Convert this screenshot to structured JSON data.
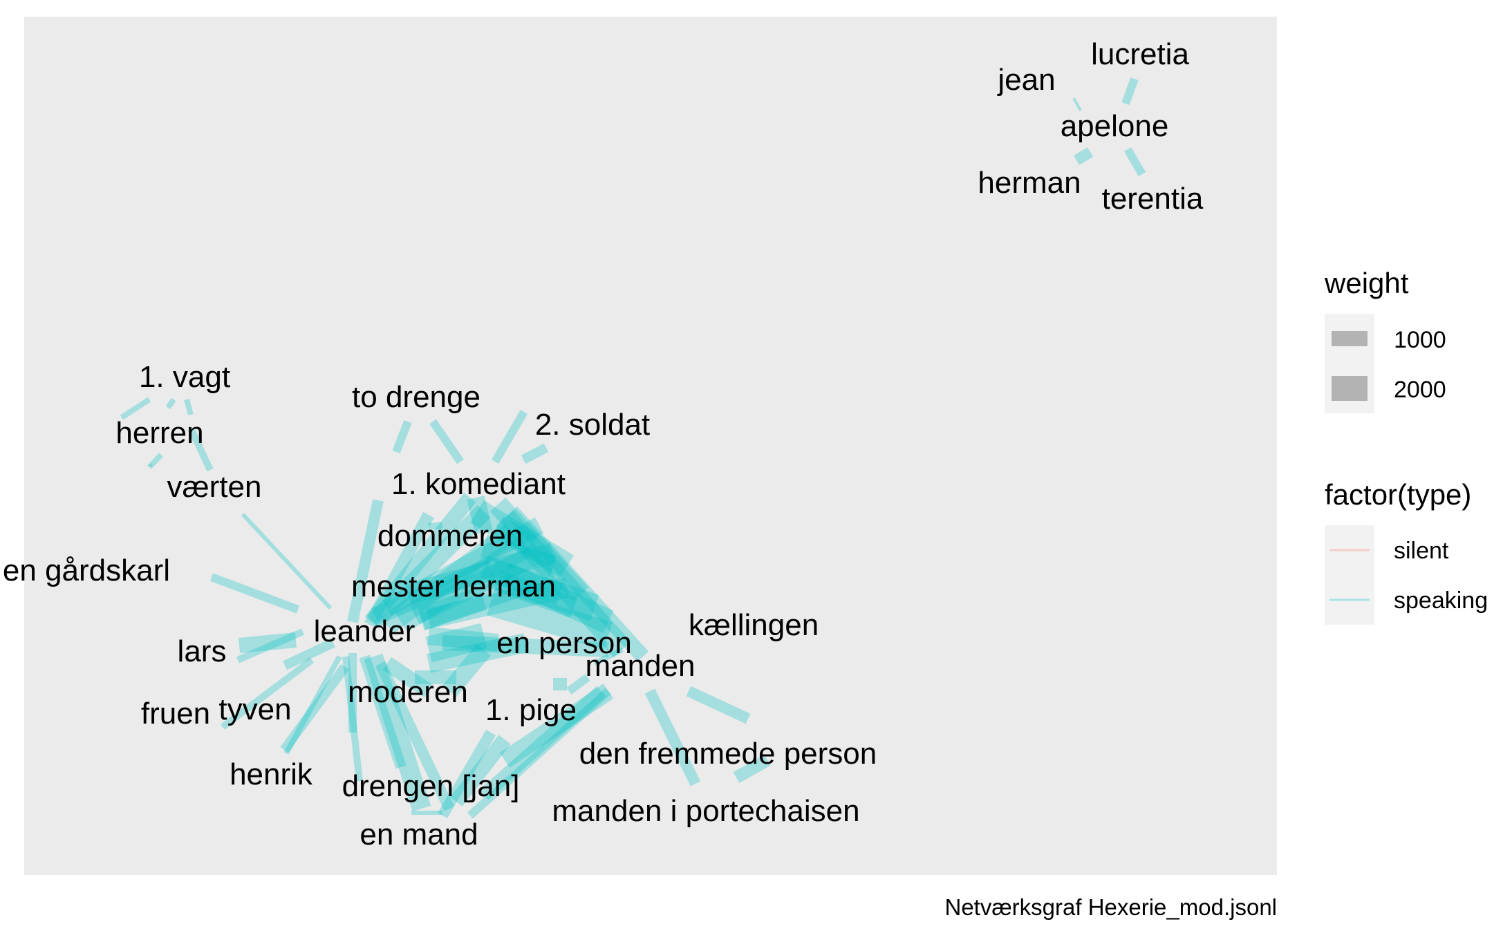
{
  "colors": {
    "panel": "#ebebeb",
    "legend_key_bg": "#f2f2f2",
    "speaking": "#00bfc4",
    "silent": "#f8766d",
    "weight_key": "#b3b3b3"
  },
  "nodes": [
    {
      "id": "jean",
      "label": "jean"
    },
    {
      "id": "lucretia",
      "label": "lucretia"
    },
    {
      "id": "apelone",
      "label": "apelone"
    },
    {
      "id": "herman",
      "label": "herman"
    },
    {
      "id": "terentia",
      "label": "terentia"
    },
    {
      "id": "vagt1",
      "label": "1. vagt"
    },
    {
      "id": "herren",
      "label": "herren"
    },
    {
      "id": "vaerten",
      "label": "værten"
    },
    {
      "id": "gardskarl",
      "label": "en gårdskarl"
    },
    {
      "id": "lars",
      "label": "lars"
    },
    {
      "id": "fruen",
      "label": "fruen"
    },
    {
      "id": "tyven",
      "label": "tyven"
    },
    {
      "id": "henrik",
      "label": "henrik"
    },
    {
      "id": "to_drenge",
      "label": "to drenge"
    },
    {
      "id": "soldat2",
      "label": "2. soldat"
    },
    {
      "id": "komediant1",
      "label": "1. komediant"
    },
    {
      "id": "dommeren",
      "label": "dommeren"
    },
    {
      "id": "mester_herman",
      "label": "mester herman"
    },
    {
      "id": "leander",
      "label": "leander"
    },
    {
      "id": "en_person",
      "label": "en person"
    },
    {
      "id": "kaellingen",
      "label": "kællingen"
    },
    {
      "id": "manden",
      "label": "manden"
    },
    {
      "id": "moderen",
      "label": "moderen"
    },
    {
      "id": "pige1",
      "label": "1. pige"
    },
    {
      "id": "fremmede",
      "label": "den fremmede person"
    },
    {
      "id": "drengen",
      "label": "drengen [jan]"
    },
    {
      "id": "portechaisen",
      "label": "manden i portechaisen"
    },
    {
      "id": "en_mand",
      "label": "en mand"
    }
  ],
  "legend": {
    "weight_title": "weight",
    "weight_items": [
      {
        "label": "1000",
        "weight": 1000
      },
      {
        "label": "2000",
        "weight": 2000
      }
    ],
    "type_title": "factor(type)",
    "type_items": [
      {
        "label": "silent",
        "type": "silent"
      },
      {
        "label": "speaking",
        "type": "speaking"
      }
    ]
  },
  "caption": "Netværksgraf Hexerie_mod.jsonl"
}
